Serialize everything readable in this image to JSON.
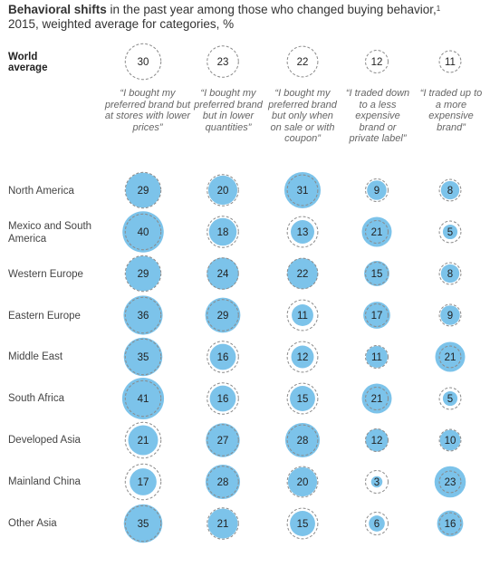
{
  "chart_data": {
    "type": "bubble-matrix",
    "title_bold": "Behavioral shifts",
    "title_rest": " in the past year among those who changed buying behavior,",
    "title_footnote": "1",
    "subtitle": "2015, weighted average for categories, %",
    "world_label": "World average",
    "categories": [
      "“I bought my preferred brand but at stores with lower prices”",
      "“I bought my preferred brand but in lower quantities”",
      "“I bought my preferred brand but only when on sale or with coupon”",
      "“I traded down to a less expensive brand or private label”",
      "“I traded up to a more expensive brand”"
    ],
    "world_average": [
      30,
      23,
      22,
      12,
      11
    ],
    "rows": [
      {
        "region": "North America",
        "values": [
          29,
          20,
          31,
          9,
          8
        ]
      },
      {
        "region": "Mexico and South America",
        "values": [
          40,
          18,
          13,
          21,
          5
        ]
      },
      {
        "region": "Western Europe",
        "values": [
          29,
          24,
          22,
          15,
          8
        ]
      },
      {
        "region": "Eastern Europe",
        "values": [
          36,
          29,
          11,
          17,
          9
        ]
      },
      {
        "region": "Middle East",
        "values": [
          35,
          16,
          12,
          11,
          21
        ]
      },
      {
        "region": "South Africa",
        "values": [
          41,
          16,
          15,
          21,
          5
        ]
      },
      {
        "region": "Developed Asia",
        "values": [
          21,
          27,
          28,
          12,
          10
        ]
      },
      {
        "region": "Mainland China",
        "values": [
          17,
          28,
          20,
          3,
          23
        ]
      },
      {
        "region": "Other Asia",
        "values": [
          35,
          21,
          15,
          6,
          16
        ]
      }
    ],
    "colors": {
      "fill": "#7cc3ea",
      "dashed_ring": "#8a8a8a",
      "text": "#222222"
    }
  }
}
